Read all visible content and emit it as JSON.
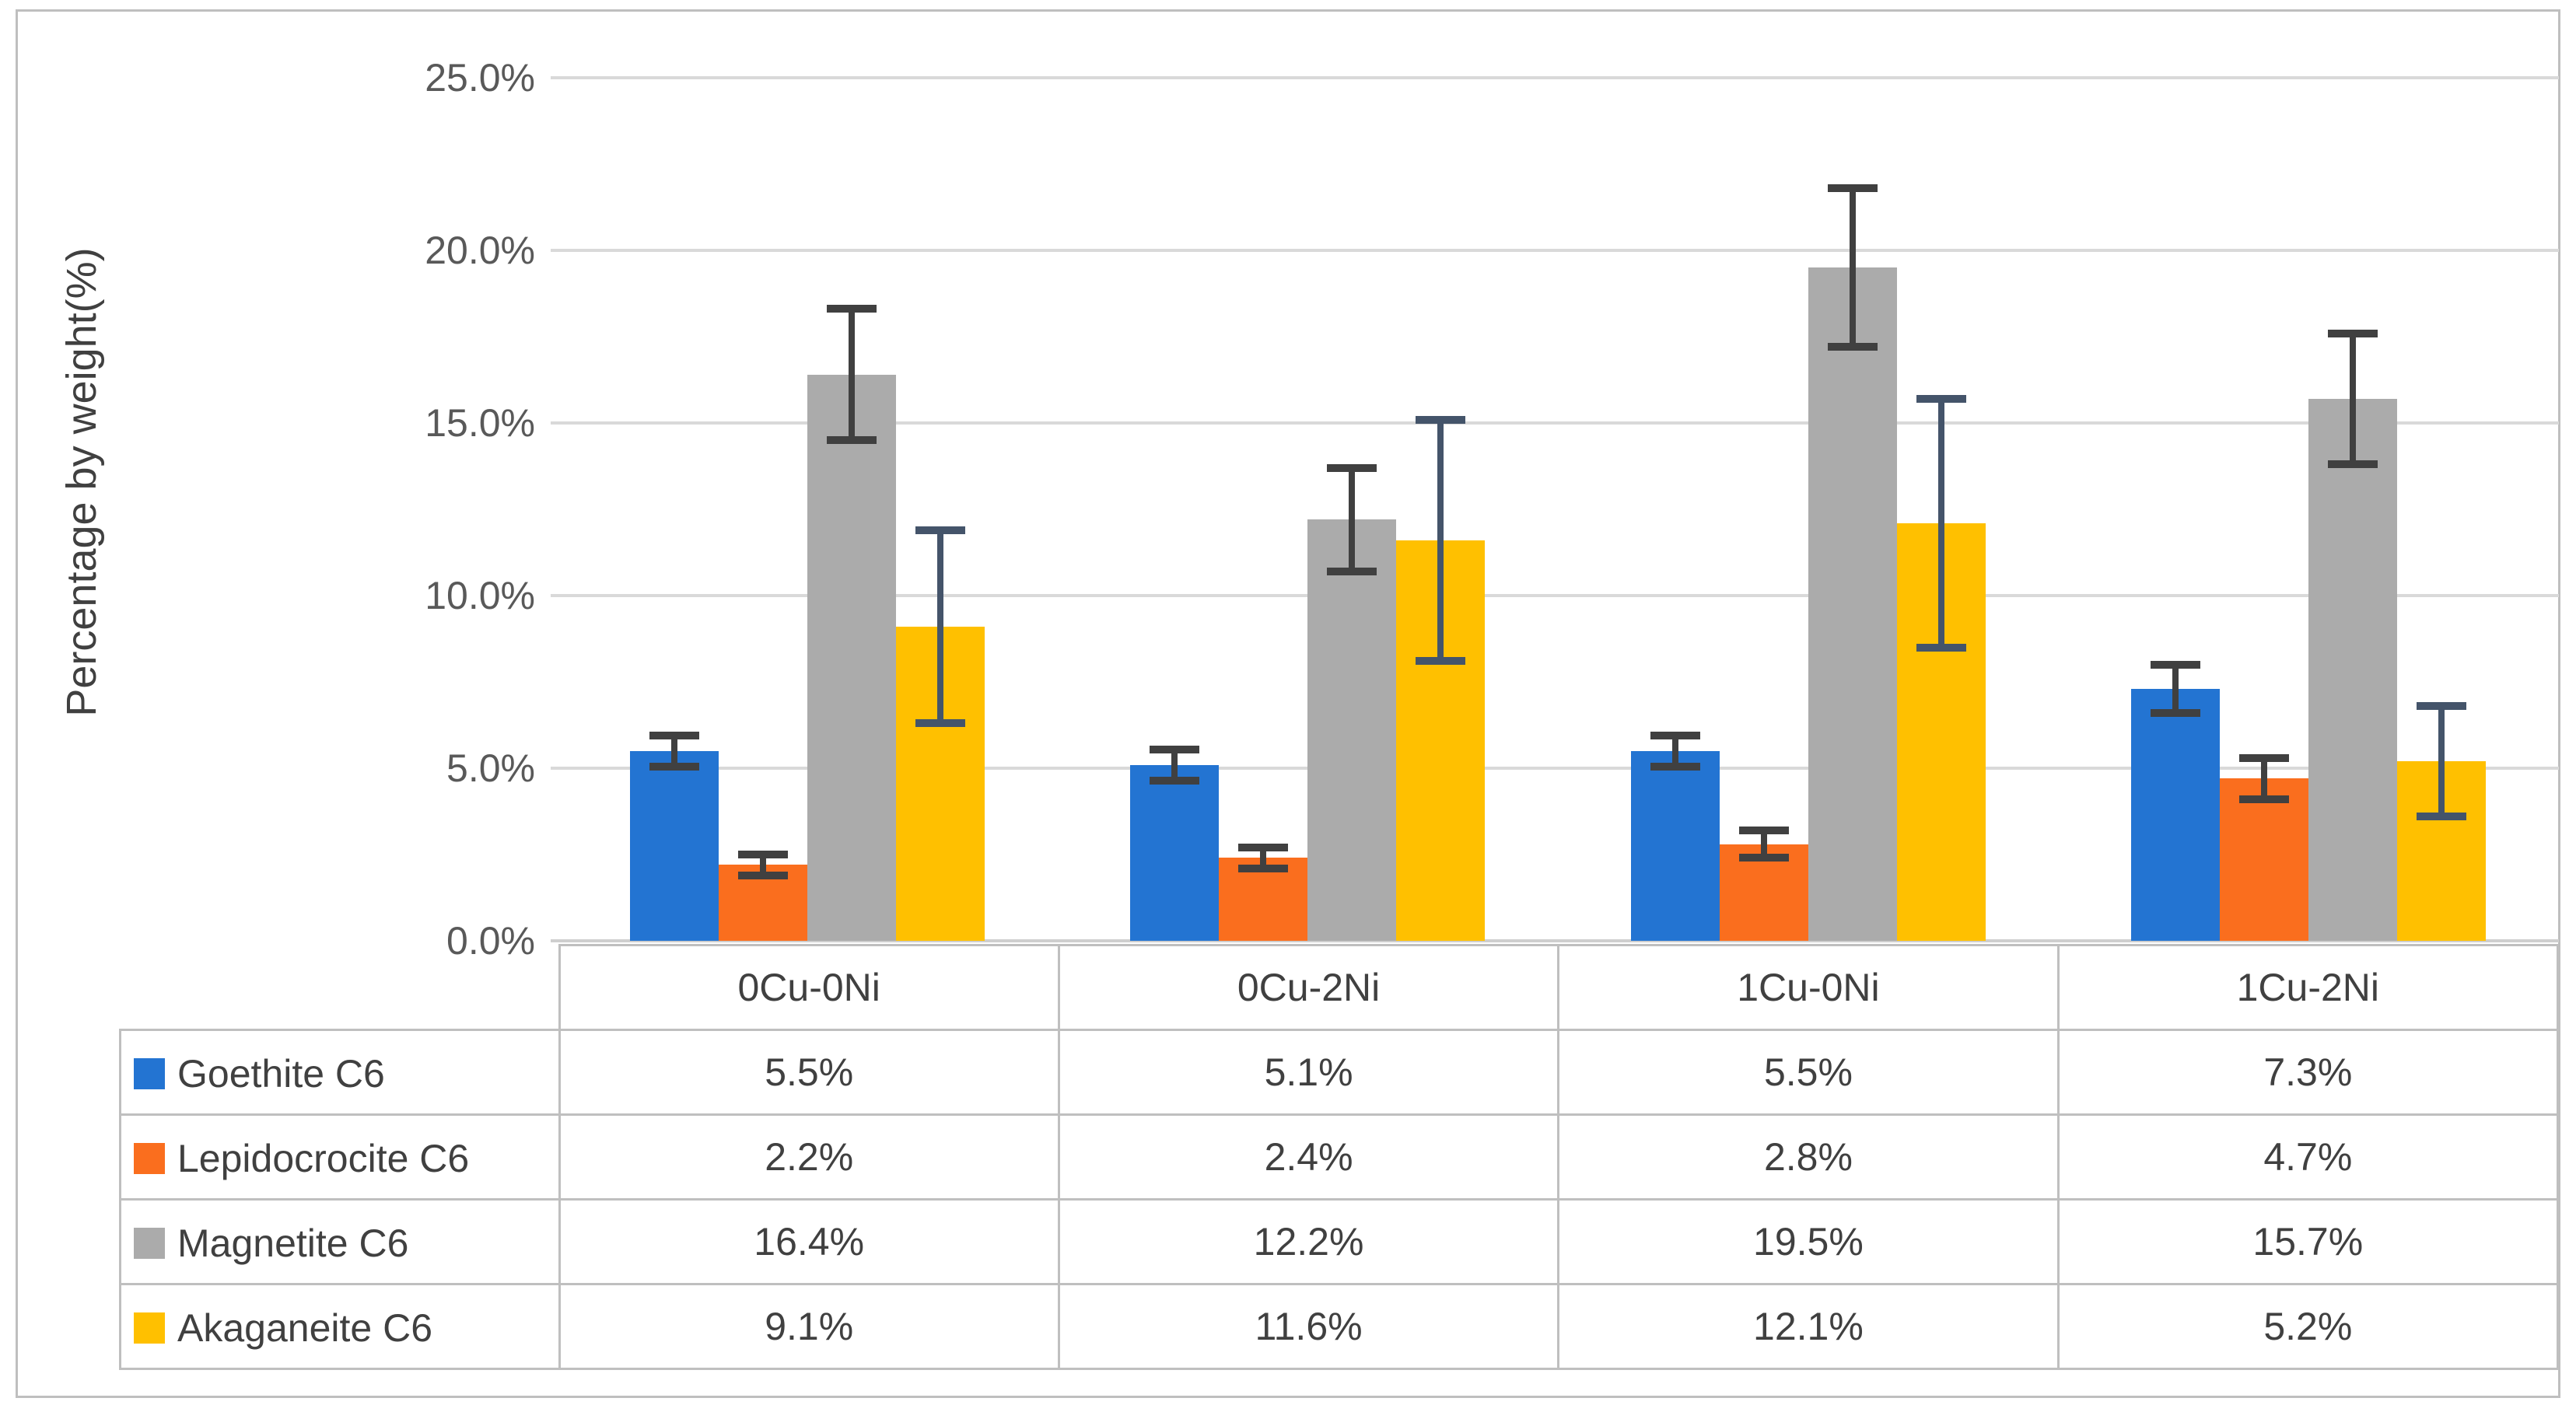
{
  "chart_data": {
    "type": "bar",
    "title": "",
    "xlabel": "",
    "ylabel": "Percentage by weight(%)",
    "ylim": [
      0,
      25
    ],
    "grid": true,
    "legend_position": "table-left",
    "categories": [
      "0Cu-0Ni",
      "0Cu-2Ni",
      "1Cu-0Ni",
      "1Cu-2Ni"
    ],
    "y_ticks": [
      {
        "label": "0.0%",
        "value": 0
      },
      {
        "label": "5.0%",
        "value": 5
      },
      {
        "label": "10.0%",
        "value": 10
      },
      {
        "label": "15.0%",
        "value": 15
      },
      {
        "label": "20.0%",
        "value": 20
      },
      {
        "label": "25.0%",
        "value": 25
      }
    ],
    "series": [
      {
        "name": "Goethite C6",
        "color": "#2374D2",
        "error_color": "#404040",
        "values": [
          5.5,
          5.1,
          5.5,
          7.3
        ],
        "errors": [
          0.45,
          0.45,
          0.45,
          0.7
        ],
        "labels": [
          "5.5%",
          "5.1%",
          "5.5%",
          "7.3%"
        ]
      },
      {
        "name": "Lepidocrocite C6",
        "color": "#FA6E1E",
        "error_color": "#404040",
        "values": [
          2.2,
          2.4,
          2.8,
          4.7
        ],
        "errors": [
          0.3,
          0.3,
          0.4,
          0.6
        ],
        "labels": [
          "2.2%",
          "2.4%",
          "2.8%",
          "4.7%"
        ]
      },
      {
        "name": "Magnetite C6",
        "color": "#ABABAB",
        "error_color": "#404040",
        "values": [
          16.4,
          12.2,
          19.5,
          15.7
        ],
        "errors": [
          1.9,
          1.5,
          2.3,
          1.9
        ],
        "labels": [
          "16.4%",
          "12.2%",
          "19.5%",
          "15.7%"
        ]
      },
      {
        "name": "Akaganeite C6",
        "color": "#FFC000",
        "error_color": "#44546A",
        "values": [
          9.1,
          11.6,
          12.1,
          5.2
        ],
        "errors": [
          2.8,
          3.5,
          3.6,
          1.6
        ],
        "labels": [
          "9.1%",
          "11.6%",
          "12.1%",
          "5.2%"
        ]
      }
    ]
  }
}
